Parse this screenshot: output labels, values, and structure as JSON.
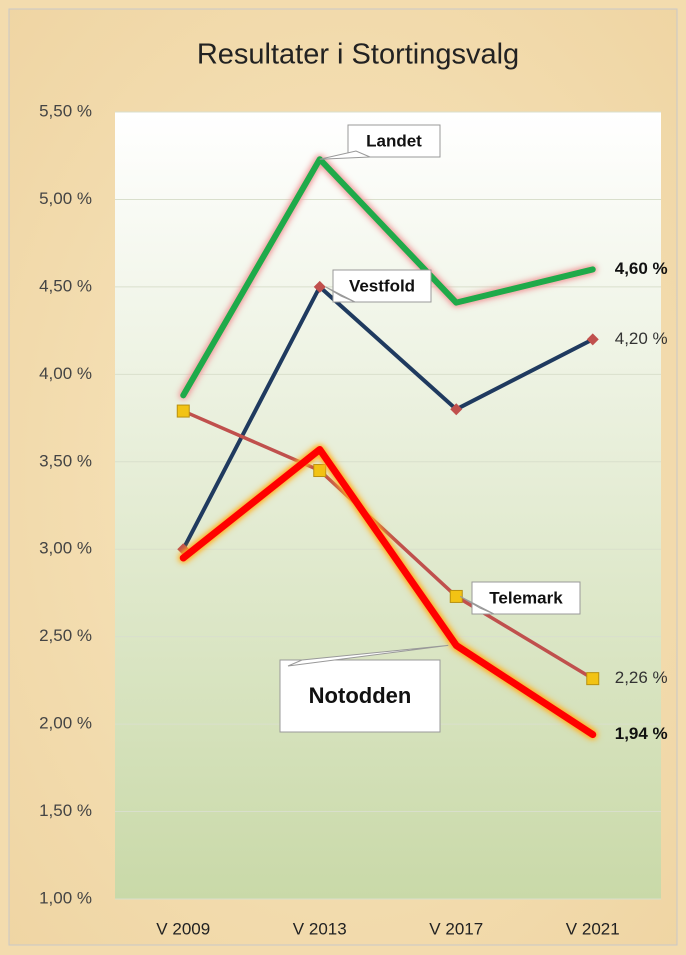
{
  "chart_data": {
    "type": "line",
    "title": "Resultater i Stortingsvalg",
    "categories": [
      "V 2009",
      "V 2013",
      "V 2017",
      "V 2021"
    ],
    "ylim": [
      1.0,
      5.5
    ],
    "yticks": [
      {
        "value": 1.0,
        "label": "1,00 %"
      },
      {
        "value": 1.5,
        "label": "1,50 %"
      },
      {
        "value": 2.0,
        "label": "2,00 %"
      },
      {
        "value": 2.5,
        "label": "2,50 %"
      },
      {
        "value": 3.0,
        "label": "3,00 %"
      },
      {
        "value": 3.5,
        "label": "3,50 %"
      },
      {
        "value": 4.0,
        "label": "4,00 %"
      },
      {
        "value": 4.5,
        "label": "4,50 %"
      },
      {
        "value": 5.0,
        "label": "5,00 %"
      },
      {
        "value": 5.5,
        "label": "5,50 %"
      }
    ],
    "grid": true,
    "series": [
      {
        "name": "Landet",
        "color": "#1faa4a",
        "width": 6,
        "glow": "#f0a0a0",
        "marker": null,
        "values": [
          3.88,
          5.23,
          4.41,
          4.6
        ],
        "value_labels": [
          null,
          null,
          null,
          "4,60 %"
        ]
      },
      {
        "name": "Vestfold",
        "color": "#1f3a5f",
        "width": 4,
        "glow": null,
        "marker": "diamond",
        "marker_color": "#c0504d",
        "values": [
          3.0,
          4.5,
          3.8,
          4.2
        ],
        "value_labels": [
          null,
          null,
          null,
          "4,20 %"
        ]
      },
      {
        "name": "Telemark",
        "color": "#c0504d",
        "width": 3.5,
        "glow": null,
        "marker": "square",
        "marker_color": "#f2c314",
        "values": [
          3.79,
          3.45,
          2.73,
          2.26
        ],
        "value_labels": [
          null,
          null,
          null,
          "2,26 %"
        ]
      },
      {
        "name": "Notodden",
        "color": "#ff0000",
        "width": 7,
        "glow": "#ffb020",
        "marker": null,
        "values": [
          2.95,
          3.57,
          2.45,
          1.94
        ],
        "value_labels": [
          null,
          null,
          null,
          "1,94 %"
        ]
      }
    ]
  }
}
